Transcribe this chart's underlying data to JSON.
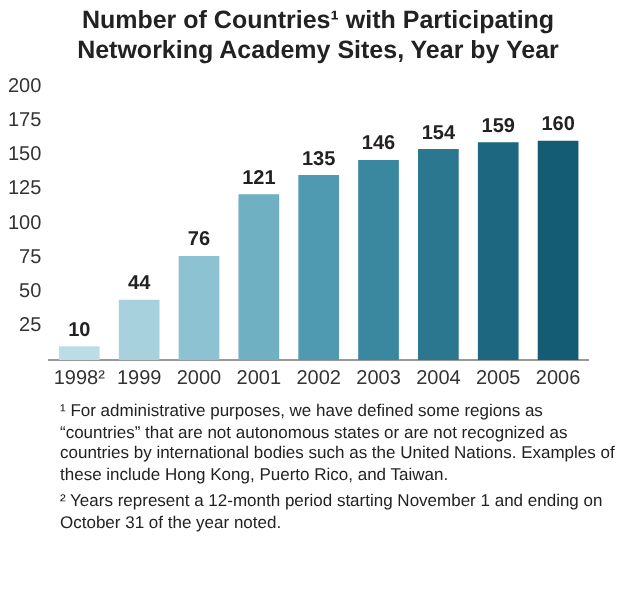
{
  "chart_data": {
    "type": "bar",
    "title": "Number of Countries¹ with Participating Networking Academy Sites, Year by Year",
    "categories": [
      "1998²",
      "1999",
      "2000",
      "2001",
      "2002",
      "2003",
      "2004",
      "2005",
      "2006"
    ],
    "values": [
      10,
      44,
      76,
      121,
      135,
      146,
      154,
      159,
      160
    ],
    "colors": [
      "#bcdde6",
      "#a6d1dd",
      "#8cc2d2",
      "#6fb0c3",
      "#4f9ab0",
      "#3a889f",
      "#2a778f",
      "#1d6880",
      "#145c73"
    ],
    "ylim": [
      0,
      200
    ],
    "yticks": [
      25,
      50,
      75,
      100,
      125,
      150,
      175,
      200
    ],
    "grid": false,
    "data_labels": true,
    "annotations": [
      "¹ For administrative purposes, we have defined some regions as “countries” that are not autonomous states or are not recognized as countries by international bodies such as the United Nations. Examples of these include Hong Kong, Puerto Rico, and Taiwan.",
      "² Years represent a 12-month period starting November 1 and ending on October 31 of the year noted."
    ]
  }
}
